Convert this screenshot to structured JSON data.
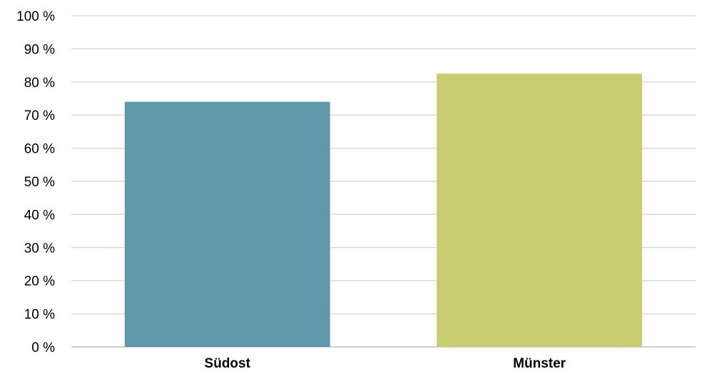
{
  "chart_data": {
    "type": "bar",
    "categories": [
      "Südost",
      "Münster"
    ],
    "values": [
      74,
      82.5
    ],
    "unit": "%",
    "ylim": [
      0,
      100
    ],
    "ytick_values": [
      0,
      10,
      20,
      30,
      40,
      50,
      60,
      70,
      80,
      90,
      100
    ],
    "ytick_labels": [
      "0 %",
      "10 %",
      "20 %",
      "30 %",
      "40 %",
      "50 %",
      "60 %",
      "70 %",
      "80 %",
      "90 %",
      "100 %"
    ],
    "bar_colors": [
      "#5f98ac",
      "#c9cd72"
    ],
    "grid": true,
    "legend": false
  }
}
